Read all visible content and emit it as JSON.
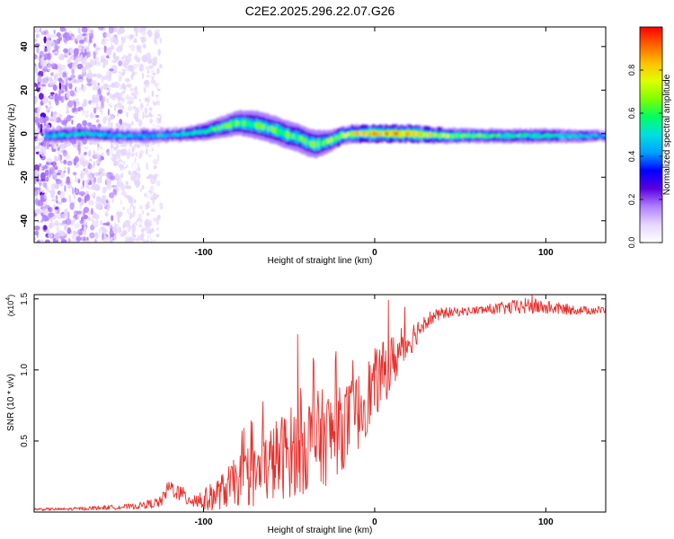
{
  "figure": {
    "title": "C2E2.2025.296.22.07.G26"
  },
  "chart_data": [
    {
      "type": "heatmap",
      "xlabel": "Height of straight line (km)",
      "ylabel": "Frequency (Hz)",
      "xlim": [
        -199,
        135
      ],
      "ylim": [
        -50,
        49
      ],
      "xticks": [
        -100,
        0,
        100
      ],
      "yticks": [
        -40,
        -20,
        0,
        20,
        40
      ],
      "colorbar": {
        "label": "Normalized spectral amplitude",
        "range": [
          0,
          1
        ],
        "ticks": [
          "0.0",
          "0.2",
          "0.4",
          "0.6",
          "0.8"
        ],
        "colors": [
          "#ffffff",
          "#e6d6ff",
          "#b080ff",
          "#5a00e0",
          "#0000ff",
          "#00a0ff",
          "#00e0e0",
          "#00ff60",
          "#80ff00",
          "#e0ff00",
          "#ffc000",
          "#ff6000",
          "#ff0000"
        ]
      },
      "ridge": {
        "x": [
          -188,
          -170,
          -150,
          -130,
          -110,
          -100,
          -90,
          -80,
          -70,
          -60,
          -50,
          -44,
          -40,
          -35,
          -30,
          -25,
          -20,
          -12,
          -5,
          0,
          10,
          20,
          40,
          60,
          80,
          100,
          120,
          135
        ],
        "y": [
          -1,
          0,
          -1,
          -1,
          0,
          1,
          3,
          5,
          4,
          2,
          -1,
          -2,
          -4,
          -5,
          -4,
          -3,
          -1,
          0,
          0,
          0,
          0,
          0,
          -1,
          -1,
          -1,
          -1,
          -1,
          -1
        ],
        "width": [
          2,
          2,
          2,
          2,
          2,
          2.5,
          3,
          3.5,
          4,
          4,
          4,
          4,
          4,
          4,
          3.5,
          3,
          2.5,
          2.5,
          2.5,
          2.5,
          2.5,
          2.5,
          2.2,
          2,
          2,
          2,
          1.8,
          1.6
        ],
        "peak": [
          0.5,
          0.5,
          0.45,
          0.45,
          0.5,
          0.55,
          0.6,
          0.6,
          0.6,
          0.6,
          0.6,
          0.6,
          0.6,
          0.6,
          0.6,
          0.65,
          0.7,
          0.75,
          0.8,
          0.85,
          0.85,
          0.85,
          0.7,
          0.6,
          0.55,
          0.55,
          0.5,
          0.45
        ]
      },
      "noise_band": {
        "x_from": -199,
        "x_to": -125,
        "level": 0.25
      }
    },
    {
      "type": "line",
      "xlabel": "Height of straight line (km)",
      "ylabel": "SNR (10 * v/v)",
      "yscale_label": "(x10",
      "yscale_exponent": "4",
      "xlim": [
        -199,
        135
      ],
      "ylim": [
        0,
        1.53
      ],
      "xticks": [
        -100,
        0,
        100
      ],
      "yticks": [
        "0.5",
        "1.0",
        "1.5"
      ],
      "color": "#e8302c",
      "series": [
        {
          "x": [
            -199,
            -180,
            -160,
            -140,
            -125,
            -120,
            -110,
            -100,
            -90,
            -80,
            -70,
            -60,
            -50,
            -40,
            -30,
            -20,
            -10,
            0,
            10,
            20,
            30,
            40,
            50,
            60,
            70,
            80,
            90,
            100,
            110,
            120,
            135
          ],
          "y": [
            0.02,
            0.02,
            0.03,
            0.04,
            0.07,
            0.18,
            0.1,
            0.08,
            0.14,
            0.22,
            0.25,
            0.35,
            0.42,
            0.48,
            0.52,
            0.58,
            0.7,
            0.9,
            1.05,
            1.2,
            1.35,
            1.4,
            1.41,
            1.42,
            1.43,
            1.44,
            1.45,
            1.44,
            1.43,
            1.42,
            1.42
          ],
          "jitter": [
            0.01,
            0.01,
            0.015,
            0.02,
            0.04,
            0.06,
            0.06,
            0.08,
            0.12,
            0.18,
            0.22,
            0.28,
            0.32,
            0.35,
            0.35,
            0.3,
            0.28,
            0.25,
            0.2,
            0.12,
            0.06,
            0.04,
            0.03,
            0.03,
            0.04,
            0.05,
            0.06,
            0.05,
            0.04,
            0.03,
            0.03
          ]
        }
      ],
      "spikes": [
        {
          "x": -45,
          "y": 1.25
        },
        {
          "x": 8,
          "y": 1.49
        },
        {
          "x": 92,
          "y": 1.53
        }
      ]
    }
  ]
}
